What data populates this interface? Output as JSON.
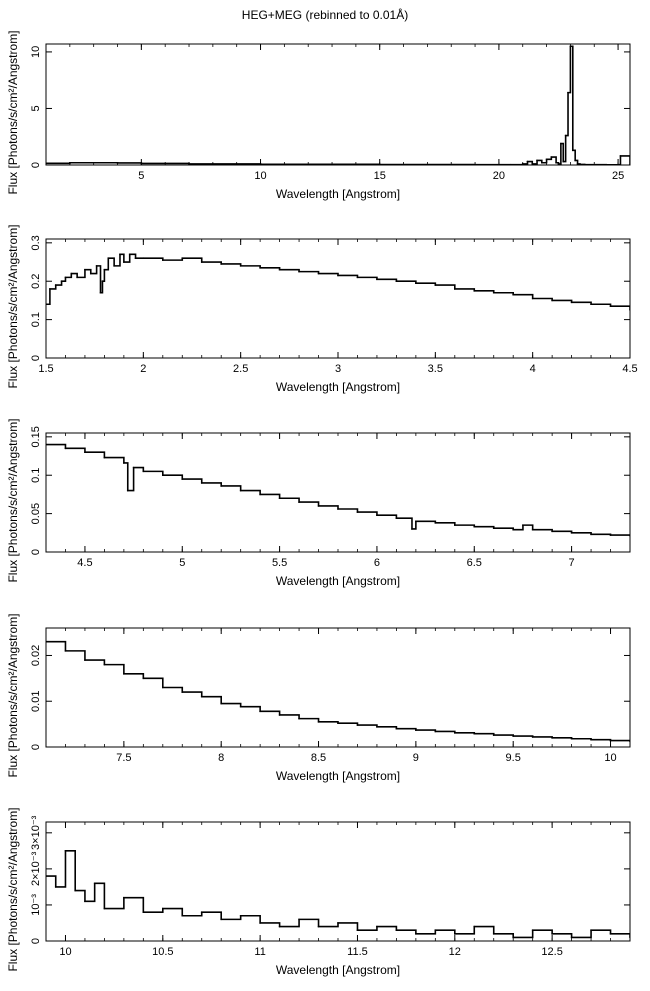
{
  "figure": {
    "title": "HEG+MEG (rebinned to 0.01Å)"
  },
  "chart_data": [
    {
      "type": "line",
      "title": "",
      "xlabel": "Wavelength [Angstrom]",
      "ylabel": "Flux [Photons/s/cm²/Angstrom]",
      "xlim": [
        1.0,
        25.5
      ],
      "ylim": [
        0,
        10.7
      ],
      "xticks": [
        5,
        10,
        15,
        20,
        25
      ],
      "xtick_labels": [
        "5",
        "10",
        "15",
        "20",
        "25"
      ],
      "yticks": [
        0,
        5,
        10
      ],
      "ytick_labels": [
        "0",
        "5",
        "10"
      ],
      "series": [
        {
          "x": [
            1.0,
            2.0,
            3.0,
            4.0,
            5.0,
            7.0,
            10.0,
            15.0,
            19.0,
            20.5,
            21.0,
            21.2,
            21.4,
            21.6,
            21.8,
            22.0,
            22.2,
            22.4,
            22.5,
            22.6,
            22.7,
            22.8,
            22.9,
            23.0,
            23.1,
            23.2,
            23.3,
            23.4,
            23.6,
            24.0,
            24.5,
            25.0,
            25.1,
            25.5
          ],
          "y": [
            0.15,
            0.2,
            0.2,
            0.18,
            0.14,
            0.1,
            0.06,
            0.04,
            0.03,
            0.03,
            0.1,
            0.3,
            0.1,
            0.4,
            0.2,
            0.5,
            0.7,
            0.2,
            0.1,
            1.9,
            0.3,
            2.6,
            6.4,
            10.5,
            1.3,
            0.4,
            0.1,
            0.05,
            0.03,
            0.03,
            0.02,
            0.03,
            0.8,
            0.03
          ]
        }
      ]
    },
    {
      "type": "line",
      "title": "",
      "xlabel": "Wavelength [Angstrom]",
      "ylabel": "Flux [Photons/s/cm²/Angstrom]",
      "xlim": [
        1.5,
        4.5
      ],
      "ylim": [
        0,
        0.31
      ],
      "xticks": [
        1.5,
        2,
        2.5,
        3,
        3.5,
        4,
        4.5
      ],
      "xtick_labels": [
        "1.5",
        "2",
        "2.5",
        "3",
        "3.5",
        "4",
        "4.5"
      ],
      "yticks": [
        0,
        0.1,
        0.2,
        0.3
      ],
      "ytick_labels": [
        "0",
        "0.1",
        "0.2",
        "0.3"
      ],
      "series": [
        {
          "x": [
            1.5,
            1.52,
            1.55,
            1.58,
            1.6,
            1.63,
            1.66,
            1.7,
            1.73,
            1.76,
            1.78,
            1.79,
            1.8,
            1.82,
            1.85,
            1.88,
            1.9,
            1.93,
            1.96,
            2.0,
            2.1,
            2.2,
            2.3,
            2.4,
            2.5,
            2.6,
            2.7,
            2.8,
            2.9,
            3.0,
            3.1,
            3.2,
            3.3,
            3.4,
            3.5,
            3.6,
            3.7,
            3.8,
            3.9,
            4.0,
            4.1,
            4.2,
            4.3,
            4.4,
            4.5
          ],
          "y": [
            0.14,
            0.18,
            0.19,
            0.2,
            0.21,
            0.22,
            0.21,
            0.23,
            0.22,
            0.24,
            0.17,
            0.2,
            0.23,
            0.26,
            0.24,
            0.27,
            0.25,
            0.27,
            0.26,
            0.26,
            0.255,
            0.26,
            0.25,
            0.245,
            0.24,
            0.235,
            0.23,
            0.225,
            0.22,
            0.215,
            0.21,
            0.205,
            0.2,
            0.195,
            0.19,
            0.18,
            0.175,
            0.17,
            0.165,
            0.155,
            0.15,
            0.145,
            0.14,
            0.135,
            0.125
          ]
        }
      ]
    },
    {
      "type": "line",
      "title": "",
      "xlabel": "Wavelength [Angstrom]",
      "ylabel": "Flux [Photons/s/cm²/Angstrom]",
      "xlim": [
        4.3,
        7.3
      ],
      "ylim": [
        0,
        0.155
      ],
      "xticks": [
        4.5,
        5,
        5.5,
        6,
        6.5,
        7
      ],
      "xtick_labels": [
        "4.5",
        "5",
        "5.5",
        "6",
        "6.5",
        "7"
      ],
      "yticks": [
        0,
        0.05,
        0.1,
        0.15
      ],
      "ytick_labels": [
        "0",
        "0.05",
        "0.1",
        "0.15"
      ],
      "series": [
        {
          "x": [
            4.3,
            4.4,
            4.5,
            4.6,
            4.7,
            4.72,
            4.75,
            4.8,
            4.9,
            5.0,
            5.1,
            5.2,
            5.3,
            5.4,
            5.5,
            5.6,
            5.7,
            5.8,
            5.9,
            6.0,
            6.1,
            6.18,
            6.2,
            6.3,
            6.4,
            6.5,
            6.6,
            6.7,
            6.75,
            6.8,
            6.9,
            7.0,
            7.1,
            7.2,
            7.3
          ],
          "y": [
            0.14,
            0.135,
            0.13,
            0.123,
            0.116,
            0.08,
            0.11,
            0.105,
            0.1,
            0.095,
            0.09,
            0.086,
            0.08,
            0.075,
            0.07,
            0.065,
            0.06,
            0.056,
            0.052,
            0.048,
            0.044,
            0.03,
            0.04,
            0.038,
            0.035,
            0.033,
            0.031,
            0.029,
            0.035,
            0.029,
            0.027,
            0.025,
            0.023,
            0.022,
            0.021
          ]
        }
      ]
    },
    {
      "type": "line",
      "title": "",
      "xlabel": "Wavelength [Angstrom]",
      "ylabel": "Flux [Photons/s/cm²/Angstrom]",
      "xlim": [
        7.1,
        10.1
      ],
      "ylim": [
        0,
        0.026
      ],
      "xticks": [
        7.5,
        8,
        8.5,
        9,
        9.5,
        10
      ],
      "xtick_labels": [
        "7.5",
        "8",
        "8.5",
        "9",
        "9.5",
        "10"
      ],
      "yticks": [
        0,
        0.01,
        0.02
      ],
      "ytick_labels": [
        "0",
        "0.01",
        "0.02"
      ],
      "series": [
        {
          "x": [
            7.1,
            7.2,
            7.3,
            7.4,
            7.5,
            7.6,
            7.7,
            7.8,
            7.9,
            8.0,
            8.1,
            8.2,
            8.3,
            8.4,
            8.5,
            8.6,
            8.7,
            8.8,
            8.9,
            9.0,
            9.1,
            9.2,
            9.3,
            9.4,
            9.5,
            9.6,
            9.7,
            9.8,
            9.9,
            10.0,
            10.1
          ],
          "y": [
            0.023,
            0.021,
            0.019,
            0.018,
            0.016,
            0.015,
            0.013,
            0.012,
            0.011,
            0.0095,
            0.0088,
            0.0078,
            0.007,
            0.0062,
            0.0055,
            0.0052,
            0.0048,
            0.0044,
            0.004,
            0.0037,
            0.0034,
            0.0031,
            0.0029,
            0.0026,
            0.0024,
            0.0022,
            0.002,
            0.0018,
            0.0016,
            0.0014,
            0.0012
          ]
        }
      ]
    },
    {
      "type": "line",
      "title": "",
      "xlabel": "Wavelength [Angstrom]",
      "ylabel": "Flux [Photons/s/cm²/Angstrom]",
      "xlim": [
        9.9,
        12.9
      ],
      "ylim": [
        0,
        0.0033
      ],
      "xticks": [
        10,
        10.5,
        11,
        11.5,
        12,
        12.5
      ],
      "xtick_labels": [
        "10",
        "10.5",
        "11",
        "11.5",
        "12",
        "12.5"
      ],
      "yticks": [
        0,
        0.001,
        0.002,
        0.003
      ],
      "ytick_labels": [
        "0",
        "10⁻³",
        "2×10⁻³",
        "3×10⁻³"
      ],
      "series": [
        {
          "x": [
            9.9,
            9.95,
            10.0,
            10.05,
            10.1,
            10.15,
            10.2,
            10.3,
            10.4,
            10.5,
            10.6,
            10.7,
            10.8,
            10.9,
            11.0,
            11.1,
            11.2,
            11.3,
            11.4,
            11.5,
            11.6,
            11.7,
            11.8,
            11.9,
            12.0,
            12.1,
            12.2,
            12.3,
            12.4,
            12.5,
            12.6,
            12.7,
            12.8,
            12.9
          ],
          "y": [
            0.0018,
            0.0015,
            0.0025,
            0.0014,
            0.0011,
            0.0016,
            0.0009,
            0.0012,
            0.0008,
            0.0009,
            0.0007,
            0.0008,
            0.0006,
            0.0007,
            0.0005,
            0.0004,
            0.0006,
            0.0004,
            0.0005,
            0.0003,
            0.0004,
            0.0003,
            0.0002,
            0.0003,
            0.0002,
            0.0004,
            0.0002,
            0.0001,
            0.0003,
            0.0002,
            0.0001,
            0.0003,
            0.0002,
            0.0001
          ]
        }
      ]
    }
  ]
}
